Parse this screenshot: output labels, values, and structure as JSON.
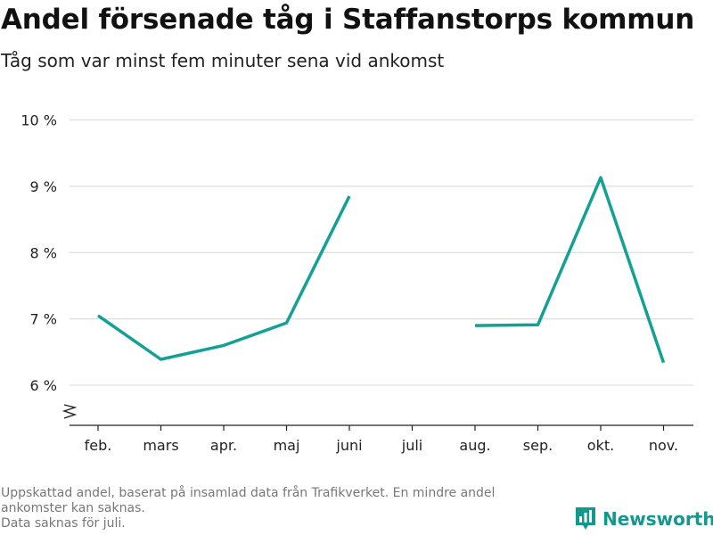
{
  "title": "Andel försenade tåg i Staffanstorps kommun",
  "subtitle": "Tåg som var minst fem minuter sena vid ankomst",
  "footnote": {
    "line1": "Uppskattad andel, baserat på insamlad data från Trafikverket. En mindre andel",
    "line2": "ankomster kan saknas.",
    "line3": "Data saknas för juli."
  },
  "brand": {
    "name": "Newsworthy",
    "icon": "bar-chart-logo-icon",
    "color": "#14978c"
  },
  "chart_data": {
    "type": "line",
    "title": "Andel försenade tåg i Staffanstorps kommun",
    "subtitle": "Tåg som var minst fem minuter sena vid ankomst",
    "categories": [
      "feb.",
      "mars",
      "apr.",
      "maj",
      "juni",
      "juli",
      "aug.",
      "sep.",
      "okt.",
      "nov."
    ],
    "series": [
      {
        "values": [
          7.05,
          6.39,
          6.6,
          6.94,
          8.85,
          null,
          6.9,
          6.91,
          9.13,
          6.34
        ],
        "color": "#14a094"
      }
    ],
    "yticks": [
      6,
      7,
      8,
      9,
      10
    ],
    "ytick_labels": [
      "6 %",
      "7 %",
      "8 %",
      "9 %",
      "10 %"
    ],
    "ylim": [
      5.6,
      10
    ],
    "y_axis_break": true,
    "grid": true,
    "xlabel": "",
    "ylabel": ""
  }
}
